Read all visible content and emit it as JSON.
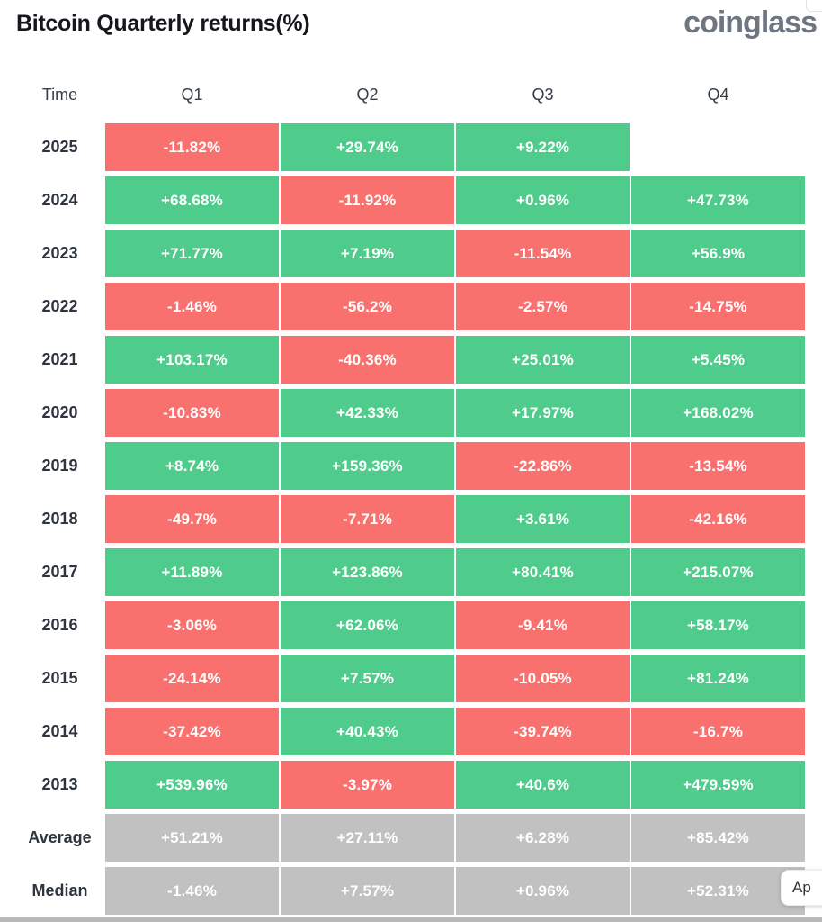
{
  "brand": {
    "logo_text": "coinglass",
    "logo_color": "#6e7681"
  },
  "overlay_button": {
    "visible_label": "Ap"
  },
  "colors": {
    "positive": "#4fcb8c",
    "negative": "#f8716f",
    "summary": "#c1c1c2"
  },
  "chart_data": {
    "type": "table",
    "title": "Bitcoin Quarterly returns(%)",
    "subtitle": "",
    "columns": [
      "Time",
      "Q1",
      "Q2",
      "Q3",
      "Q4"
    ],
    "legend": {
      "positive": "green cell",
      "negative": "red cell",
      "summary": "gray cell",
      "empty": "no data"
    },
    "rows": [
      {
        "label": "2025",
        "values": [
          -11.82,
          29.74,
          9.22,
          null
        ],
        "display": [
          "-11.82%",
          "+29.74%",
          "+9.22%",
          ""
        ],
        "kinds": [
          "negative",
          "positive",
          "positive",
          "empty"
        ]
      },
      {
        "label": "2024",
        "values": [
          68.68,
          -11.92,
          0.96,
          47.73
        ],
        "display": [
          "+68.68%",
          "-11.92%",
          "+0.96%",
          "+47.73%"
        ],
        "kinds": [
          "positive",
          "negative",
          "positive",
          "positive"
        ]
      },
      {
        "label": "2023",
        "values": [
          71.77,
          7.19,
          -11.54,
          56.9
        ],
        "display": [
          "+71.77%",
          "+7.19%",
          "-11.54%",
          "+56.9%"
        ],
        "kinds": [
          "positive",
          "positive",
          "negative",
          "positive"
        ]
      },
      {
        "label": "2022",
        "values": [
          -1.46,
          -56.2,
          -2.57,
          -14.75
        ],
        "display": [
          "-1.46%",
          "-56.2%",
          "-2.57%",
          "-14.75%"
        ],
        "kinds": [
          "negative",
          "negative",
          "negative",
          "negative"
        ]
      },
      {
        "label": "2021",
        "values": [
          103.17,
          -40.36,
          25.01,
          5.45
        ],
        "display": [
          "+103.17%",
          "-40.36%",
          "+25.01%",
          "+5.45%"
        ],
        "kinds": [
          "positive",
          "negative",
          "positive",
          "positive"
        ]
      },
      {
        "label": "2020",
        "values": [
          -10.83,
          42.33,
          17.97,
          168.02
        ],
        "display": [
          "-10.83%",
          "+42.33%",
          "+17.97%",
          "+168.02%"
        ],
        "kinds": [
          "negative",
          "positive",
          "positive",
          "positive"
        ]
      },
      {
        "label": "2019",
        "values": [
          8.74,
          159.36,
          -22.86,
          -13.54
        ],
        "display": [
          "+8.74%",
          "+159.36%",
          "-22.86%",
          "-13.54%"
        ],
        "kinds": [
          "positive",
          "positive",
          "negative",
          "negative"
        ]
      },
      {
        "label": "2018",
        "values": [
          -49.7,
          -7.71,
          3.61,
          -42.16
        ],
        "display": [
          "-49.7%",
          "-7.71%",
          "+3.61%",
          "-42.16%"
        ],
        "kinds": [
          "negative",
          "negative",
          "positive",
          "negative"
        ]
      },
      {
        "label": "2017",
        "values": [
          11.89,
          123.86,
          80.41,
          215.07
        ],
        "display": [
          "+11.89%",
          "+123.86%",
          "+80.41%",
          "+215.07%"
        ],
        "kinds": [
          "positive",
          "positive",
          "positive",
          "positive"
        ]
      },
      {
        "label": "2016",
        "values": [
          -3.06,
          62.06,
          -9.41,
          58.17
        ],
        "display": [
          "-3.06%",
          "+62.06%",
          "-9.41%",
          "+58.17%"
        ],
        "kinds": [
          "negative",
          "positive",
          "negative",
          "positive"
        ]
      },
      {
        "label": "2015",
        "values": [
          -24.14,
          7.57,
          -10.05,
          81.24
        ],
        "display": [
          "-24.14%",
          "+7.57%",
          "-10.05%",
          "+81.24%"
        ],
        "kinds": [
          "negative",
          "positive",
          "negative",
          "positive"
        ]
      },
      {
        "label": "2014",
        "values": [
          -37.42,
          40.43,
          -39.74,
          -16.7
        ],
        "display": [
          "-37.42%",
          "+40.43%",
          "-39.74%",
          "-16.7%"
        ],
        "kinds": [
          "negative",
          "positive",
          "negative",
          "negative"
        ]
      },
      {
        "label": "2013",
        "values": [
          539.96,
          -3.97,
          40.6,
          479.59
        ],
        "display": [
          "+539.96%",
          "-3.97%",
          "+40.6%",
          "+479.59%"
        ],
        "kinds": [
          "positive",
          "negative",
          "positive",
          "positive"
        ]
      },
      {
        "label": "Average",
        "values": [
          51.21,
          27.11,
          6.28,
          85.42
        ],
        "display": [
          "+51.21%",
          "+27.11%",
          "+6.28%",
          "+85.42%"
        ],
        "kinds": [
          "summary",
          "summary",
          "summary",
          "summary"
        ]
      },
      {
        "label": "Median",
        "values": [
          -1.46,
          7.57,
          0.96,
          52.31
        ],
        "display": [
          "-1.46%",
          "+7.57%",
          "+0.96%",
          "+52.31%"
        ],
        "kinds": [
          "summary",
          "summary",
          "summary",
          "summary"
        ]
      }
    ]
  }
}
